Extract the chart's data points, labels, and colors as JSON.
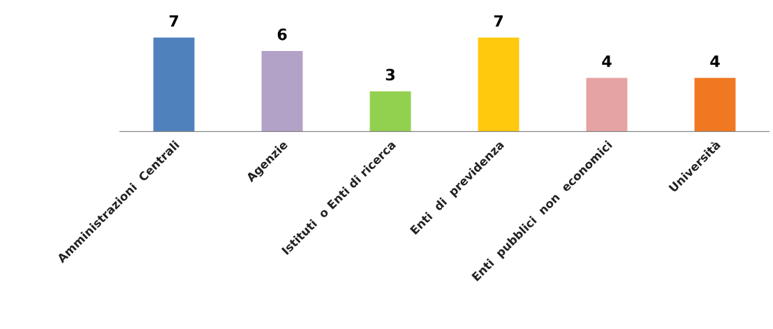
{
  "chart_data": {
    "type": "bar",
    "categories": [
      "Amministrazioni  Centrali",
      "Agenzie",
      "Istituti  o Enti di ricerca",
      "Enti  di  previdenza",
      "Enti  pubblici  non  economici",
      "Università"
    ],
    "values": [
      7,
      6,
      3,
      7,
      4,
      4
    ],
    "colors": [
      "#4f81bd",
      "#b3a2c7",
      "#92d050",
      "#ffc90e",
      "#e6a3a3",
      "#f07820"
    ],
    "data_labels": true,
    "grid": false,
    "legend": false
  }
}
